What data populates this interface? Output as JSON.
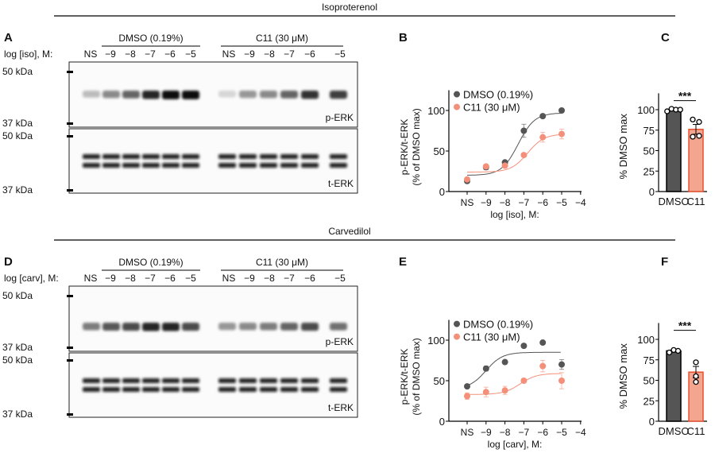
{
  "colors": {
    "dmso": "#555555",
    "c11": "#f4907a",
    "c11_edge": "#e8502e",
    "c11_bar": "#f4a58f"
  },
  "sections": [
    {
      "title": "Isoproterenol",
      "panel_blot": "A",
      "panel_curve": "B",
      "panel_bar": "C",
      "group1": "DMSO (0.19%)",
      "group2": "C11 (30 μM)",
      "row_label": "log [iso], M:",
      "lanes": [
        "NS",
        "−9",
        "−8",
        "−7",
        "−6",
        "−5",
        "NS",
        "−9",
        "−8",
        "−7",
        "−6",
        "−5"
      ],
      "markers": [
        "50 kDa",
        "37 kDa",
        "50 kDa",
        "37 kDa"
      ],
      "blot1": "p-ERK",
      "blot2": "t-ERK",
      "perk_intensity": [
        0.25,
        0.45,
        0.6,
        0.85,
        0.95,
        0.95,
        0.15,
        0.4,
        0.45,
        0.6,
        0.8,
        0.75
      ]
    },
    {
      "title": "Carvedilol",
      "panel_blot": "D",
      "panel_curve": "E",
      "panel_bar": "F",
      "group1": "DMSO (0.19%)",
      "group2": "C11 (30 μM)",
      "row_label": "log [carv], M:",
      "lanes": [
        "NS",
        "−9",
        "−8",
        "−7",
        "−6",
        "−5",
        "NS",
        "−9",
        "−8",
        "−7",
        "−6",
        "−5"
      ],
      "markers": [
        "50 kDa",
        "37 kDa",
        "50 kDa",
        "37 kDa"
      ],
      "blot1": "p-ERK",
      "blot2": "t-ERK",
      "perk_intensity": [
        0.5,
        0.65,
        0.7,
        0.85,
        0.85,
        0.7,
        0.4,
        0.45,
        0.5,
        0.6,
        0.7,
        0.55
      ]
    }
  ],
  "chart_data": [
    {
      "type": "scatter",
      "panel": "B",
      "ylabel": "p-ERK/t-ERK",
      "ylabel2": "(% of DMSO max)",
      "xlabel": "log [iso], M:",
      "xticks": [
        "NS",
        "−9",
        "−8",
        "−7",
        "−6",
        "−5",
        "−4"
      ],
      "yticks": [
        0,
        50,
        100
      ],
      "ylim": [
        0,
        125
      ],
      "series": [
        {
          "name": "DMSO (0.19%)",
          "x": [
            "NS",
            -9,
            -8,
            -7,
            -6,
            -5
          ],
          "y": [
            13,
            30,
            36,
            75,
            93,
            100
          ],
          "err": [
            2,
            3,
            2,
            8,
            2,
            1
          ],
          "fit": {
            "bottom": 20,
            "top": 97,
            "logEC50": -7.3
          }
        },
        {
          "name": "C11 (30 μM)",
          "x": [
            "NS",
            -9,
            -8,
            -7,
            -6,
            -5
          ],
          "y": [
            15,
            31,
            32,
            45,
            67,
            71
          ],
          "err": [
            2,
            2,
            2,
            2,
            6,
            6
          ],
          "fit": {
            "bottom": 24,
            "top": 71,
            "logEC50": -6.8
          }
        }
      ]
    },
    {
      "type": "bar",
      "panel": "C",
      "ylabel": "% DMSO max",
      "categories": [
        "DMSO",
        "C11"
      ],
      "values": [
        100,
        76
      ],
      "sem": [
        1,
        6
      ],
      "points": [
        [
          98,
          101,
          100,
          100
        ],
        [
          88,
          85,
          67,
          68
        ]
      ],
      "yticks": [
        0,
        25,
        50,
        75,
        100
      ],
      "ylim": [
        0,
        120
      ],
      "significance": "***"
    },
    {
      "type": "scatter",
      "panel": "E",
      "ylabel": "p-ERK/t-ERK",
      "ylabel2": "(% of DMSO max)",
      "xlabel": "log [carv], M:",
      "xticks": [
        "NS",
        "−9",
        "−8",
        "−7",
        "−6",
        "−5",
        "−4"
      ],
      "yticks": [
        0,
        50,
        100
      ],
      "ylim": [
        0,
        125
      ],
      "series": [
        {
          "name": "DMSO (0.19%)",
          "x": [
            "NS",
            -9,
            -8,
            -7,
            -6,
            -5
          ],
          "y": [
            43,
            65,
            73,
            93,
            97,
            70
          ],
          "err": [
            2,
            3,
            2,
            2,
            2,
            6
          ],
          "fit": {
            "bottom": 40,
            "top": 85,
            "logEC50": -9
          }
        },
        {
          "name": "C11 (30 μM)",
          "x": [
            "NS",
            -9,
            -8,
            -7,
            -6,
            -5
          ],
          "y": [
            31,
            36,
            38,
            50,
            68,
            50
          ],
          "err": [
            4,
            6,
            5,
            2,
            7,
            10
          ],
          "fit": {
            "bottom": 33,
            "top": 59,
            "logEC50": -7.2
          }
        }
      ]
    },
    {
      "type": "bar",
      "panel": "F",
      "ylabel": "% DMSO max",
      "categories": [
        "DMSO",
        "C11"
      ],
      "values": [
        86,
        60
      ],
      "sem": [
        1,
        7
      ],
      "points": [
        [
          84,
          87,
          86
        ],
        [
          72,
          55,
          48
        ]
      ],
      "yticks": [
        0,
        25,
        50,
        75,
        100
      ],
      "ylim": [
        0,
        120
      ],
      "significance": "***"
    }
  ]
}
